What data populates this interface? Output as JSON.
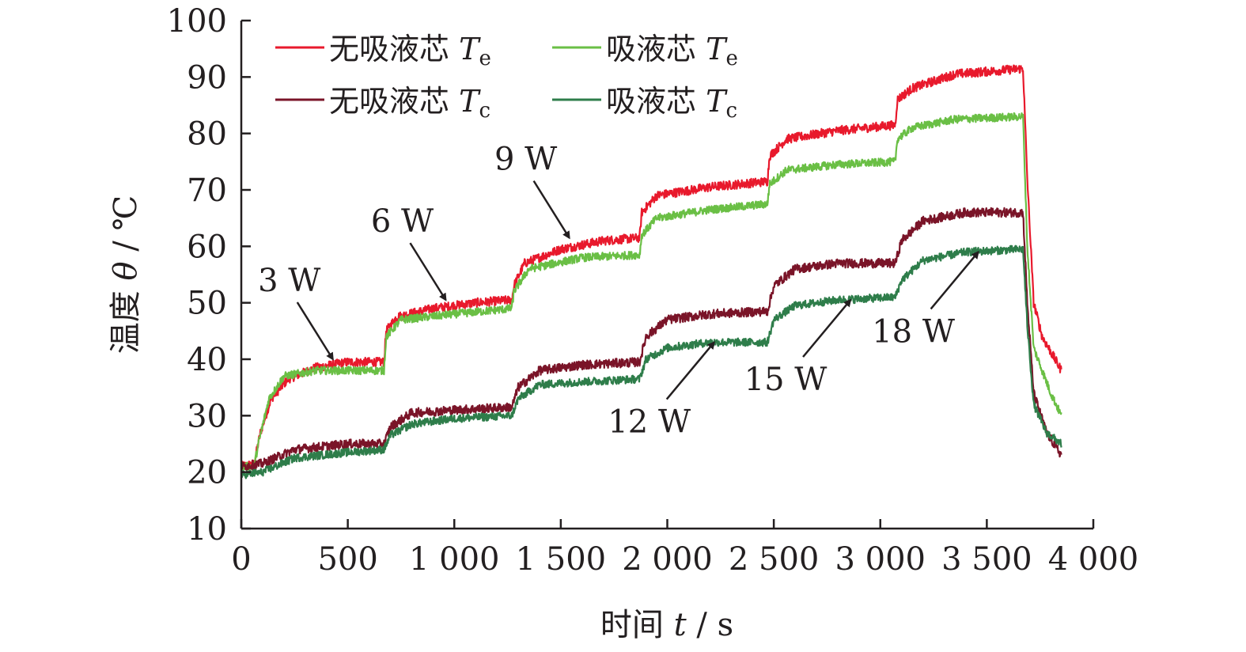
{
  "chart_data": {
    "type": "line",
    "xlabel": {
      "name": "时间",
      "var": "t",
      "unit": "s"
    },
    "ylabel": {
      "name": "温度",
      "var": "θ",
      "unit": "℃"
    },
    "xlim": [
      0,
      4000
    ],
    "ylim": [
      10,
      100
    ],
    "x_ticks": [
      {
        "v": 0,
        "label": "0"
      },
      {
        "v": 500,
        "label": "500"
      },
      {
        "v": 1000,
        "label": "1 000"
      },
      {
        "v": 1500,
        "label": "1 500"
      },
      {
        "v": 2000,
        "label": "2 000"
      },
      {
        "v": 2500,
        "label": "2 500"
      },
      {
        "v": 3000,
        "label": "3 000"
      },
      {
        "v": 3500,
        "label": "3 500"
      },
      {
        "v": 4000,
        "label": "4 000"
      }
    ],
    "y_ticks": [
      10,
      20,
      30,
      40,
      50,
      60,
      70,
      80,
      90,
      100
    ],
    "legend": [
      {
        "name": "无吸液芯",
        "var": "T",
        "sub": "e",
        "color": "#e8192c"
      },
      {
        "name": "吸液芯",
        "var": "T",
        "sub": "e",
        "color": "#6abf45"
      },
      {
        "name": "无吸液芯",
        "var": "T",
        "sub": "c",
        "color": "#7a1428"
      },
      {
        "name": "吸液芯",
        "var": "T",
        "sub": "c",
        "color": "#2e7d4a"
      }
    ],
    "series": [
      {
        "name": "无吸液芯 Te",
        "color": "#e8192c",
        "noise": 0.8,
        "points": [
          [
            0,
            21
          ],
          [
            60,
            21.5
          ],
          [
            90,
            27
          ],
          [
            140,
            33
          ],
          [
            220,
            36.5
          ],
          [
            350,
            38.5
          ],
          [
            500,
            39.5
          ],
          [
            670,
            39.5
          ],
          [
            680,
            45
          ],
          [
            730,
            47.5
          ],
          [
            900,
            49
          ],
          [
            1100,
            50
          ],
          [
            1270,
            50.5
          ],
          [
            1280,
            53
          ],
          [
            1330,
            57
          ],
          [
            1500,
            59.5
          ],
          [
            1700,
            61
          ],
          [
            1870,
            61.5
          ],
          [
            1880,
            66
          ],
          [
            1950,
            69
          ],
          [
            2200,
            70.5
          ],
          [
            2470,
            71.5
          ],
          [
            2480,
            76
          ],
          [
            2560,
            79
          ],
          [
            2800,
            80.5
          ],
          [
            3070,
            81.5
          ],
          [
            3080,
            86
          ],
          [
            3150,
            88
          ],
          [
            3350,
            90.5
          ],
          [
            3670,
            91.5
          ],
          [
            3690,
            72
          ],
          [
            3720,
            50
          ],
          [
            3760,
            44
          ],
          [
            3850,
            38
          ]
        ]
      },
      {
        "name": "吸液芯 Te",
        "color": "#6abf45",
        "noise": 0.7,
        "points": [
          [
            0,
            21
          ],
          [
            60,
            21
          ],
          [
            80,
            25
          ],
          [
            130,
            33
          ],
          [
            200,
            37
          ],
          [
            350,
            38
          ],
          [
            670,
            38
          ],
          [
            680,
            44
          ],
          [
            750,
            47
          ],
          [
            1000,
            48
          ],
          [
            1270,
            49
          ],
          [
            1280,
            52
          ],
          [
            1350,
            56
          ],
          [
            1600,
            58
          ],
          [
            1870,
            58.5
          ],
          [
            1880,
            62
          ],
          [
            1950,
            65
          ],
          [
            2200,
            66.5
          ],
          [
            2470,
            67.5
          ],
          [
            2480,
            71
          ],
          [
            2560,
            73.5
          ],
          [
            2800,
            74.5
          ],
          [
            3070,
            75
          ],
          [
            3080,
            79
          ],
          [
            3150,
            81
          ],
          [
            3350,
            82.5
          ],
          [
            3670,
            83
          ],
          [
            3690,
            60
          ],
          [
            3720,
            42
          ],
          [
            3800,
            34
          ],
          [
            3850,
            30
          ]
        ]
      },
      {
        "name": "无吸液芯 Tc",
        "color": "#7a1428",
        "noise": 0.8,
        "points": [
          [
            0,
            21
          ],
          [
            100,
            21.5
          ],
          [
            250,
            24
          ],
          [
            500,
            25
          ],
          [
            670,
            25
          ],
          [
            700,
            28
          ],
          [
            800,
            30.5
          ],
          [
            1000,
            31
          ],
          [
            1270,
            31.5
          ],
          [
            1300,
            35
          ],
          [
            1400,
            38
          ],
          [
            1600,
            39
          ],
          [
            1870,
            39.5
          ],
          [
            1900,
            44
          ],
          [
            2000,
            47
          ],
          [
            2200,
            48
          ],
          [
            2470,
            48.5
          ],
          [
            2500,
            53
          ],
          [
            2600,
            56
          ],
          [
            2800,
            57
          ],
          [
            3070,
            57
          ],
          [
            3100,
            61
          ],
          [
            3200,
            64.5
          ],
          [
            3400,
            66
          ],
          [
            3670,
            66
          ],
          [
            3690,
            50
          ],
          [
            3720,
            34
          ],
          [
            3780,
            27
          ],
          [
            3850,
            23
          ]
        ]
      },
      {
        "name": "吸液芯 Tc",
        "color": "#2e7d4a",
        "noise": 0.7,
        "points": [
          [
            0,
            19.5
          ],
          [
            100,
            20
          ],
          [
            250,
            22.5
          ],
          [
            500,
            23.5
          ],
          [
            670,
            24
          ],
          [
            700,
            26.5
          ],
          [
            800,
            28.5
          ],
          [
            1000,
            29.5
          ],
          [
            1270,
            30
          ],
          [
            1300,
            33
          ],
          [
            1400,
            35.5
          ],
          [
            1600,
            36
          ],
          [
            1870,
            36.5
          ],
          [
            1900,
            40
          ],
          [
            2000,
            42
          ],
          [
            2200,
            43
          ],
          [
            2470,
            43
          ],
          [
            2500,
            47
          ],
          [
            2600,
            49.5
          ],
          [
            2800,
            50.5
          ],
          [
            3070,
            51
          ],
          [
            3100,
            54
          ],
          [
            3200,
            57.5
          ],
          [
            3400,
            59
          ],
          [
            3670,
            59.5
          ],
          [
            3690,
            46
          ],
          [
            3720,
            32
          ],
          [
            3780,
            27
          ],
          [
            3850,
            25
          ]
        ]
      }
    ],
    "annotations": [
      {
        "label": "3 W",
        "tip": [
          430,
          40
        ]
      },
      {
        "label": "6 W",
        "tip": [
          960,
          50.5
        ]
      },
      {
        "label": "9 W",
        "tip": [
          1540,
          61.5
        ]
      },
      {
        "label": "12 W",
        "tip": [
          2220,
          43
        ]
      },
      {
        "label": "15 W",
        "tip": [
          2860,
          50.5
        ]
      },
      {
        "label": "18 W",
        "tip": [
          3460,
          59
        ]
      }
    ]
  }
}
